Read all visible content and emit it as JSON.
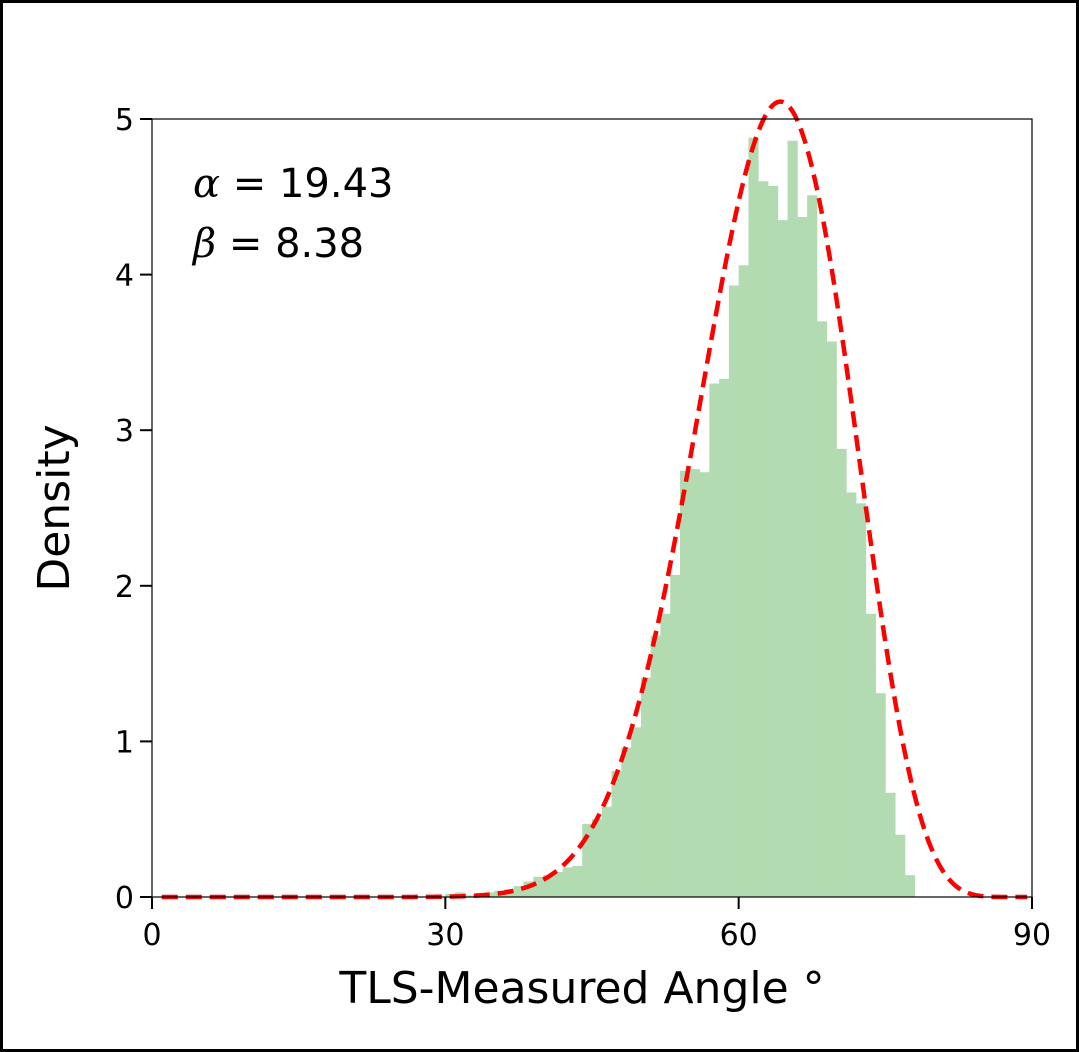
{
  "chart_data": {
    "type": "bar",
    "title": "",
    "xlabel": "TLS-Measured Angle °",
    "ylabel": "Density",
    "xlim": [
      0,
      90
    ],
    "ylim": [
      0,
      5
    ],
    "xticks": [
      0,
      30,
      60,
      90
    ],
    "yticks": [
      0,
      1,
      2,
      3,
      4,
      5
    ],
    "grid": false,
    "annotations": [
      {
        "symbol": "α",
        "text": " = 19.43"
      },
      {
        "symbol": "β",
        "text": " = 8.38"
      }
    ],
    "histogram": {
      "bin_edges_start": 30,
      "bin_width": 1,
      "values": [
        0.02,
        0.03,
        0.01,
        0.02,
        0.03,
        0.04,
        0.05,
        0.07,
        0.1,
        0.13,
        0.14,
        0.16,
        0.19,
        0.2,
        0.47,
        0.5,
        0.58,
        0.81,
        0.96,
        1.09,
        1.41,
        1.68,
        1.82,
        2.07,
        2.74,
        2.75,
        2.73,
        3.3,
        3.33,
        3.93,
        4.06,
        4.88,
        4.6,
        4.57,
        4.35,
        4.86,
        4.37,
        4.51,
        3.7,
        3.57,
        2.88,
        2.6,
        2.53,
        1.82,
        1.31,
        0.67,
        0.4,
        0.14
      ],
      "color": "#b2dbb1"
    },
    "fit_curve": {
      "distribution": "beta",
      "alpha": 19.43,
      "beta": 8.38,
      "x_scale_max": 90,
      "color": "#ff0000",
      "style": "dashed"
    }
  }
}
